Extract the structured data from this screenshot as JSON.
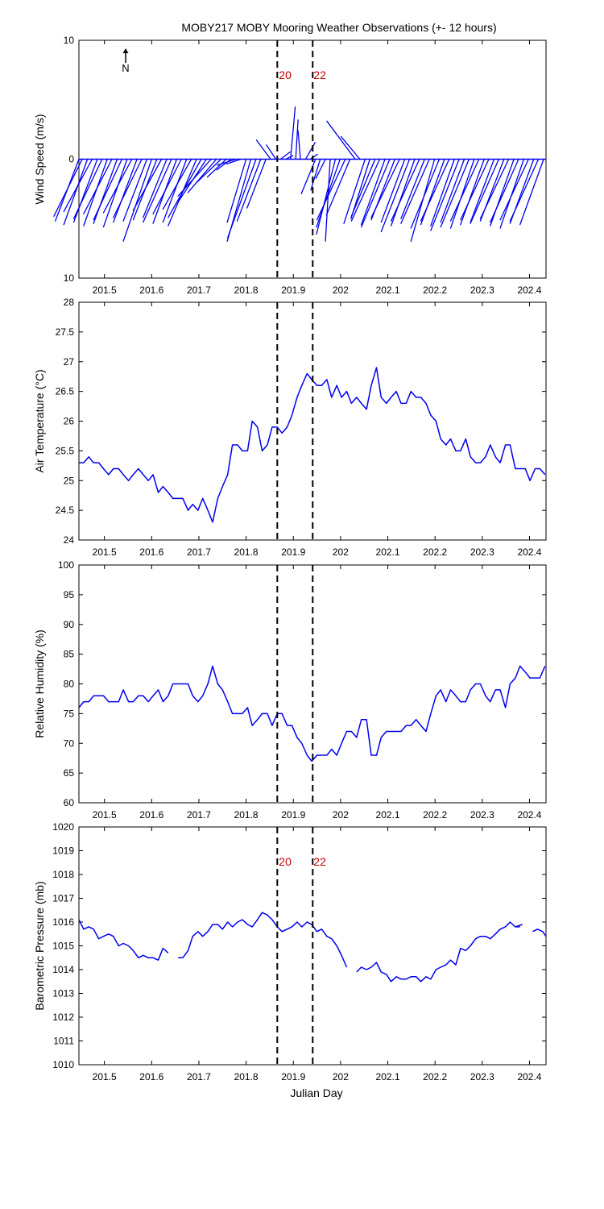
{
  "title": "MOBY217 MOBY Mooring Weather Observations (+- 12 hours)",
  "xlabel": "Julian Day",
  "north_label": "N",
  "colors": {
    "data": "#0000ee",
    "marker_label": "#c00000",
    "axis": "#000000"
  },
  "chart_data": [
    {
      "type": "wind-vectors",
      "ylabel": "Wind Speed (m/s)",
      "xlim": [
        201.446,
        202.435
      ],
      "ylim": [
        -10,
        10
      ],
      "yticks": [
        "10",
        "0",
        "10"
      ],
      "xticks": [
        "201.5",
        "201.6",
        "201.7",
        "201.8",
        "201.9",
        "202",
        "202.1",
        "202.2",
        "202.3",
        "202.4"
      ],
      "markers": [
        {
          "x": 201.866,
          "label": "20"
        },
        {
          "x": 201.941,
          "label": "22"
        }
      ],
      "x": [
        201.446,
        201.453,
        201.464,
        201.474,
        201.485,
        201.495,
        201.506,
        201.516,
        201.527,
        201.537,
        201.548,
        201.558,
        201.569,
        201.579,
        201.59,
        201.6,
        201.611,
        201.621,
        201.632,
        201.642,
        201.653,
        201.663,
        201.674,
        201.684,
        201.695,
        201.705,
        201.716,
        201.726,
        201.737,
        201.747,
        201.758,
        201.768,
        201.779,
        201.789,
        201.8,
        201.81,
        201.821,
        201.831,
        201.842,
        201.852,
        201.863,
        201.873,
        201.884,
        201.894,
        201.905,
        201.915,
        201.926,
        201.936,
        201.947,
        201.957,
        201.968,
        201.978,
        201.989,
        201.999,
        202.01,
        202.02,
        202.031,
        202.041,
        202.052,
        202.062,
        202.073,
        202.083,
        202.094,
        202.104,
        202.115,
        202.125,
        202.136,
        202.146,
        202.157,
        202.167,
        202.178,
        202.188,
        202.199,
        202.209,
        202.22,
        202.23,
        202.241,
        202.251,
        202.262,
        202.272,
        202.283,
        202.293,
        202.304,
        202.314,
        202.325,
        202.335,
        202.346,
        202.356,
        202.367,
        202.377,
        202.388,
        202.398,
        202.409,
        202.419,
        202.43
      ],
      "u": [
        -0.05,
        -0.06,
        -0.05,
        -0.06,
        -0.05,
        -0.06,
        -0.05,
        -0.06,
        -0.05,
        -0.06,
        -0.05,
        -0.06,
        -0.05,
        -0.06,
        -0.05,
        -0.06,
        -0.05,
        -0.06,
        -0.05,
        -0.06,
        -0.05,
        -0.06,
        -0.05,
        -0.06,
        -0.06,
        -0.07,
        -0.06,
        -0.07,
        -0.06,
        -0.05,
        -0.04,
        -0.03,
        -0.04,
        -0.03,
        -0.04,
        -0.05,
        -0.06,
        -0.05,
        -0.04,
        -0.03,
        -0.02,
        0.02,
        0.015,
        0.01,
        0.005,
        -0.005,
        0.02,
        0.015,
        -0.03,
        -0.02,
        -0.02,
        -0.01,
        -0.04,
        -0.05,
        -0.06,
        -0.05,
        -0.06,
        -0.04,
        -0.045,
        -0.04,
        -0.05,
        -0.06,
        -0.05,
        -0.06,
        -0.05,
        -0.06,
        -0.05,
        -0.06,
        -0.05,
        -0.06,
        -0.05,
        -0.06,
        -0.05,
        -0.06,
        -0.05,
        -0.06,
        -0.05,
        -0.06,
        -0.05,
        -0.06,
        -0.05,
        -0.06,
        -0.05,
        -0.06,
        -0.05,
        -0.06,
        -0.05,
        -0.06,
        -0.05,
        -0.06,
        -0.05,
        -0.06,
        -0.05,
        -0.06,
        -0.05
      ],
      "v": [
        -5.2,
        -4.8,
        -5.5,
        -4.4,
        -5.3,
        -5.0,
        -5.6,
        -4.6,
        -5.4,
        -5.1,
        -5.7,
        -4.5,
        -5.3,
        -4.9,
        -5.2,
        -6.9,
        -5.1,
        -4.3,
        -4.9,
        -5.3,
        -5.4,
        -4.6,
        -5.3,
        -4.2,
        -5.6,
        -4.9,
        -3.6,
        -3.1,
        -2.8,
        -1.9,
        -1.5,
        -0.9,
        -0.5,
        -0.4,
        -5.3,
        -6.9,
        -6.6,
        -5.2,
        -4.1,
        1.6,
        1.2,
        0.6,
        0.3,
        4.4,
        3.3,
        2.4,
        1.4,
        0.4,
        -2.9,
        -2.6,
        -1.6,
        -6.9,
        -6.3,
        -5.7,
        -5.1,
        -4.7,
        3.2,
        1.9,
        -5.4,
        -5.0,
        -4.8,
        -5.2,
        -5.5,
        -5.7,
        -5.1,
        -4.9,
        -5.3,
        -6.1,
        -5.6,
        -5.2,
        -5.0,
        -5.4,
        -6.9,
        -5.8,
        -5.5,
        -5.2,
        -5.6,
        -6.0,
        -5.3,
        -5.7,
        -5.8,
        -5.2,
        -5.5,
        -5.1,
        -5.3,
        -5.4,
        -5.2,
        -5.0,
        -5.6,
        -5.3,
        -5.8,
        -5.1,
        -5.4,
        -5.2,
        -5.5
      ]
    },
    {
      "type": "line",
      "ylabel": "Air Temperature (°C)",
      "xlim": [
        201.446,
        202.435
      ],
      "ylim": [
        24,
        28
      ],
      "yticks": [
        "24",
        "24.5",
        "25",
        "25.5",
        "26",
        "26.5",
        "27",
        "27.5",
        "28"
      ],
      "xticks": [
        "201.5",
        "201.6",
        "201.7",
        "201.8",
        "201.9",
        "202",
        "202.1",
        "202.2",
        "202.3",
        "202.4"
      ],
      "markers": [
        {
          "x": 201.866,
          "label": ""
        },
        {
          "x": 201.941,
          "label": ""
        }
      ],
      "x": [
        201.446,
        201.456,
        201.467,
        201.477,
        201.488,
        201.498,
        201.509,
        201.519,
        201.53,
        201.54,
        201.551,
        201.561,
        201.572,
        201.582,
        201.593,
        201.603,
        201.614,
        201.624,
        201.635,
        201.645,
        201.656,
        201.666,
        201.677,
        201.687,
        201.698,
        201.708,
        201.719,
        201.729,
        201.74,
        201.75,
        201.761,
        201.771,
        201.782,
        201.792,
        201.803,
        201.813,
        201.824,
        201.834,
        201.845,
        201.855,
        201.866,
        201.876,
        201.887,
        201.897,
        201.908,
        201.918,
        201.929,
        201.939,
        201.95,
        201.96,
        201.971,
        201.981,
        201.992,
        202.002,
        202.013,
        202.023,
        202.034,
        202.044,
        202.055,
        202.065,
        202.076,
        202.086,
        202.097,
        202.107,
        202.118,
        202.128,
        202.139,
        202.149,
        202.16,
        202.17,
        202.181,
        202.191,
        202.202,
        202.212,
        202.223,
        202.233,
        202.244,
        202.254,
        202.265,
        202.275,
        202.286,
        202.296,
        202.307,
        202.317,
        202.328,
        202.338,
        202.349,
        202.359,
        202.37,
        202.38,
        202.391,
        202.401,
        202.412,
        202.422,
        202.433
      ],
      "y": [
        25.3,
        25.3,
        25.4,
        25.3,
        25.3,
        25.2,
        25.1,
        25.2,
        25.2,
        25.1,
        25.0,
        25.1,
        25.2,
        25.1,
        25.0,
        25.1,
        24.8,
        24.9,
        24.8,
        24.7,
        24.7,
        24.7,
        24.5,
        24.6,
        24.5,
        24.7,
        24.5,
        24.3,
        24.7,
        24.9,
        25.1,
        25.6,
        25.6,
        25.5,
        25.5,
        26.0,
        25.9,
        25.5,
        25.6,
        25.9,
        25.9,
        25.8,
        25.9,
        26.1,
        26.4,
        26.6,
        26.8,
        26.7,
        26.6,
        26.6,
        26.7,
        26.4,
        26.6,
        26.4,
        26.5,
        26.3,
        26.4,
        26.3,
        26.2,
        26.6,
        26.9,
        26.4,
        26.3,
        26.4,
        26.5,
        26.3,
        26.3,
        26.5,
        26.4,
        26.4,
        26.3,
        26.1,
        26.0,
        25.7,
        25.6,
        25.7,
        25.5,
        25.5,
        25.7,
        25.4,
        25.3,
        25.3,
        25.4,
        25.6,
        25.4,
        25.3,
        25.6,
        25.6,
        25.2,
        25.2,
        25.2,
        25.0,
        25.2,
        25.2,
        25.1
      ]
    },
    {
      "type": "line",
      "ylabel": "Relative Humidity (%)",
      "xlim": [
        201.446,
        202.435
      ],
      "ylim": [
        60,
        100
      ],
      "yticks": [
        "60",
        "65",
        "70",
        "75",
        "80",
        "85",
        "90",
        "95",
        "100"
      ],
      "xticks": [
        "201.5",
        "201.6",
        "201.7",
        "201.8",
        "201.9",
        "202",
        "202.1",
        "202.2",
        "202.3",
        "202.4"
      ],
      "markers": [
        {
          "x": 201.866,
          "label": ""
        },
        {
          "x": 201.941,
          "label": ""
        }
      ],
      "x": [
        201.446,
        201.456,
        201.467,
        201.477,
        201.488,
        201.498,
        201.509,
        201.519,
        201.53,
        201.54,
        201.551,
        201.561,
        201.572,
        201.582,
        201.593,
        201.603,
        201.614,
        201.624,
        201.635,
        201.645,
        201.656,
        201.666,
        201.677,
        201.687,
        201.698,
        201.708,
        201.719,
        201.729,
        201.74,
        201.75,
        201.761,
        201.771,
        201.782,
        201.792,
        201.803,
        201.813,
        201.824,
        201.834,
        201.845,
        201.855,
        201.866,
        201.876,
        201.887,
        201.897,
        201.908,
        201.918,
        201.929,
        201.939,
        201.95,
        201.96,
        201.971,
        201.981,
        201.992,
        202.002,
        202.013,
        202.023,
        202.034,
        202.044,
        202.055,
        202.065,
        202.076,
        202.086,
        202.097,
        202.107,
        202.118,
        202.128,
        202.139,
        202.149,
        202.16,
        202.17,
        202.181,
        202.191,
        202.202,
        202.212,
        202.223,
        202.233,
        202.244,
        202.254,
        202.265,
        202.275,
        202.286,
        202.296,
        202.307,
        202.317,
        202.328,
        202.338,
        202.349,
        202.359,
        202.37,
        202.38,
        202.391,
        202.401,
        202.412,
        202.422,
        202.433
      ],
      "y": [
        76,
        77,
        77,
        78,
        78,
        78,
        77,
        77,
        77,
        79,
        77,
        77,
        78,
        78,
        77,
        78,
        79,
        77,
        78,
        80,
        80,
        80,
        80,
        78,
        77,
        78,
        80,
        83,
        80,
        79,
        77,
        75,
        75,
        75,
        76,
        73,
        74,
        75,
        75,
        73,
        75,
        75,
        73,
        73,
        71,
        70,
        68,
        67,
        68,
        68,
        68,
        69,
        68,
        70,
        72,
        72,
        71,
        74,
        74,
        68,
        68,
        71,
        72,
        72,
        72,
        72,
        73,
        73,
        74,
        73,
        72,
        75,
        78,
        79,
        77,
        79,
        78,
        77,
        77,
        79,
        80,
        80,
        78,
        77,
        79,
        79,
        76,
        80,
        81,
        83,
        82,
        81,
        81,
        81,
        83
      ]
    },
    {
      "type": "line",
      "ylabel": "Barometric Pressure (mb)",
      "xlim": [
        201.446,
        202.435
      ],
      "ylim": [
        1010,
        1020
      ],
      "yticks": [
        "1010",
        "1011",
        "1012",
        "1013",
        "1014",
        "1015",
        "1016",
        "1017",
        "1018",
        "1019",
        "1020"
      ],
      "xticks": [
        "201.5",
        "201.6",
        "201.7",
        "201.8",
        "201.9",
        "202",
        "202.1",
        "202.2",
        "202.3",
        "202.4"
      ],
      "markers": [
        {
          "x": 201.866,
          "label": "20"
        },
        {
          "x": 201.941,
          "label": "22"
        }
      ],
      "segments": [
        {
          "x": [
            201.446,
            201.456,
            201.467,
            201.477,
            201.488,
            201.498,
            201.509,
            201.519,
            201.53,
            201.54,
            201.551,
            201.561,
            201.572,
            201.582,
            201.593,
            201.603,
            201.614,
            201.624,
            201.635
          ],
          "y": [
            1016.1,
            1015.7,
            1015.8,
            1015.7,
            1015.3,
            1015.4,
            1015.5,
            1015.4,
            1015.0,
            1015.1,
            1015.0,
            1014.8,
            1014.5,
            1014.6,
            1014.5,
            1014.5,
            1014.4,
            1014.9,
            1014.7
          ]
        },
        {
          "x": [
            201.656,
            201.666,
            201.677,
            201.687,
            201.698,
            201.708,
            201.719,
            201.729,
            201.74,
            201.75,
            201.761,
            201.771,
            201.782,
            201.792,
            201.803,
            201.813,
            201.824,
            201.834,
            201.845,
            201.855,
            201.866,
            201.876,
            201.887,
            201.897,
            201.908,
            201.918,
            201.929,
            201.939,
            201.95,
            201.96,
            201.971,
            201.981,
            201.992,
            202.002,
            202.013
          ],
          "y": [
            1014.5,
            1014.5,
            1014.8,
            1015.4,
            1015.6,
            1015.4,
            1015.6,
            1015.9,
            1015.9,
            1015.7,
            1016.0,
            1015.8,
            1016.0,
            1016.1,
            1015.9,
            1015.8,
            1016.1,
            1016.4,
            1016.3,
            1016.1,
            1015.8,
            1015.6,
            1015.7,
            1015.8,
            1016.0,
            1015.8,
            1016.0,
            1015.9,
            1015.6,
            1015.7,
            1015.4,
            1015.3,
            1015.0,
            1014.6,
            1014.1
          ]
        },
        {
          "x": [
            202.034,
            202.044,
            202.055,
            202.065,
            202.076,
            202.086,
            202.097,
            202.107,
            202.118,
            202.128,
            202.139,
            202.149,
            202.16,
            202.17,
            202.181,
            202.191,
            202.202,
            202.212,
            202.223,
            202.233,
            202.244,
            202.254,
            202.265,
            202.275,
            202.286,
            202.296,
            202.307,
            202.317,
            202.328,
            202.338,
            202.349,
            202.359,
            202.37,
            202.38
          ],
          "y": [
            1013.9,
            1014.1,
            1014.0,
            1014.1,
            1014.3,
            1013.9,
            1013.8,
            1013.5,
            1013.7,
            1013.6,
            1013.6,
            1013.7,
            1013.7,
            1013.5,
            1013.7,
            1013.6,
            1014.0,
            1014.1,
            1014.2,
            1014.4,
            1014.2,
            1014.9,
            1014.8,
            1015.0,
            1015.3,
            1015.4,
            1015.4,
            1015.3,
            1015.5,
            1015.7,
            1015.8,
            1016.0,
            1015.8,
            1015.8
          ]
        },
        {
          "x": [
            202.37,
            202.385
          ],
          "y": [
            1015.8,
            1015.9
          ]
        },
        {
          "x": [
            202.407,
            202.417,
            202.428,
            202.435
          ],
          "y": [
            1015.6,
            1015.7,
            1015.6,
            1015.4
          ]
        }
      ]
    }
  ]
}
